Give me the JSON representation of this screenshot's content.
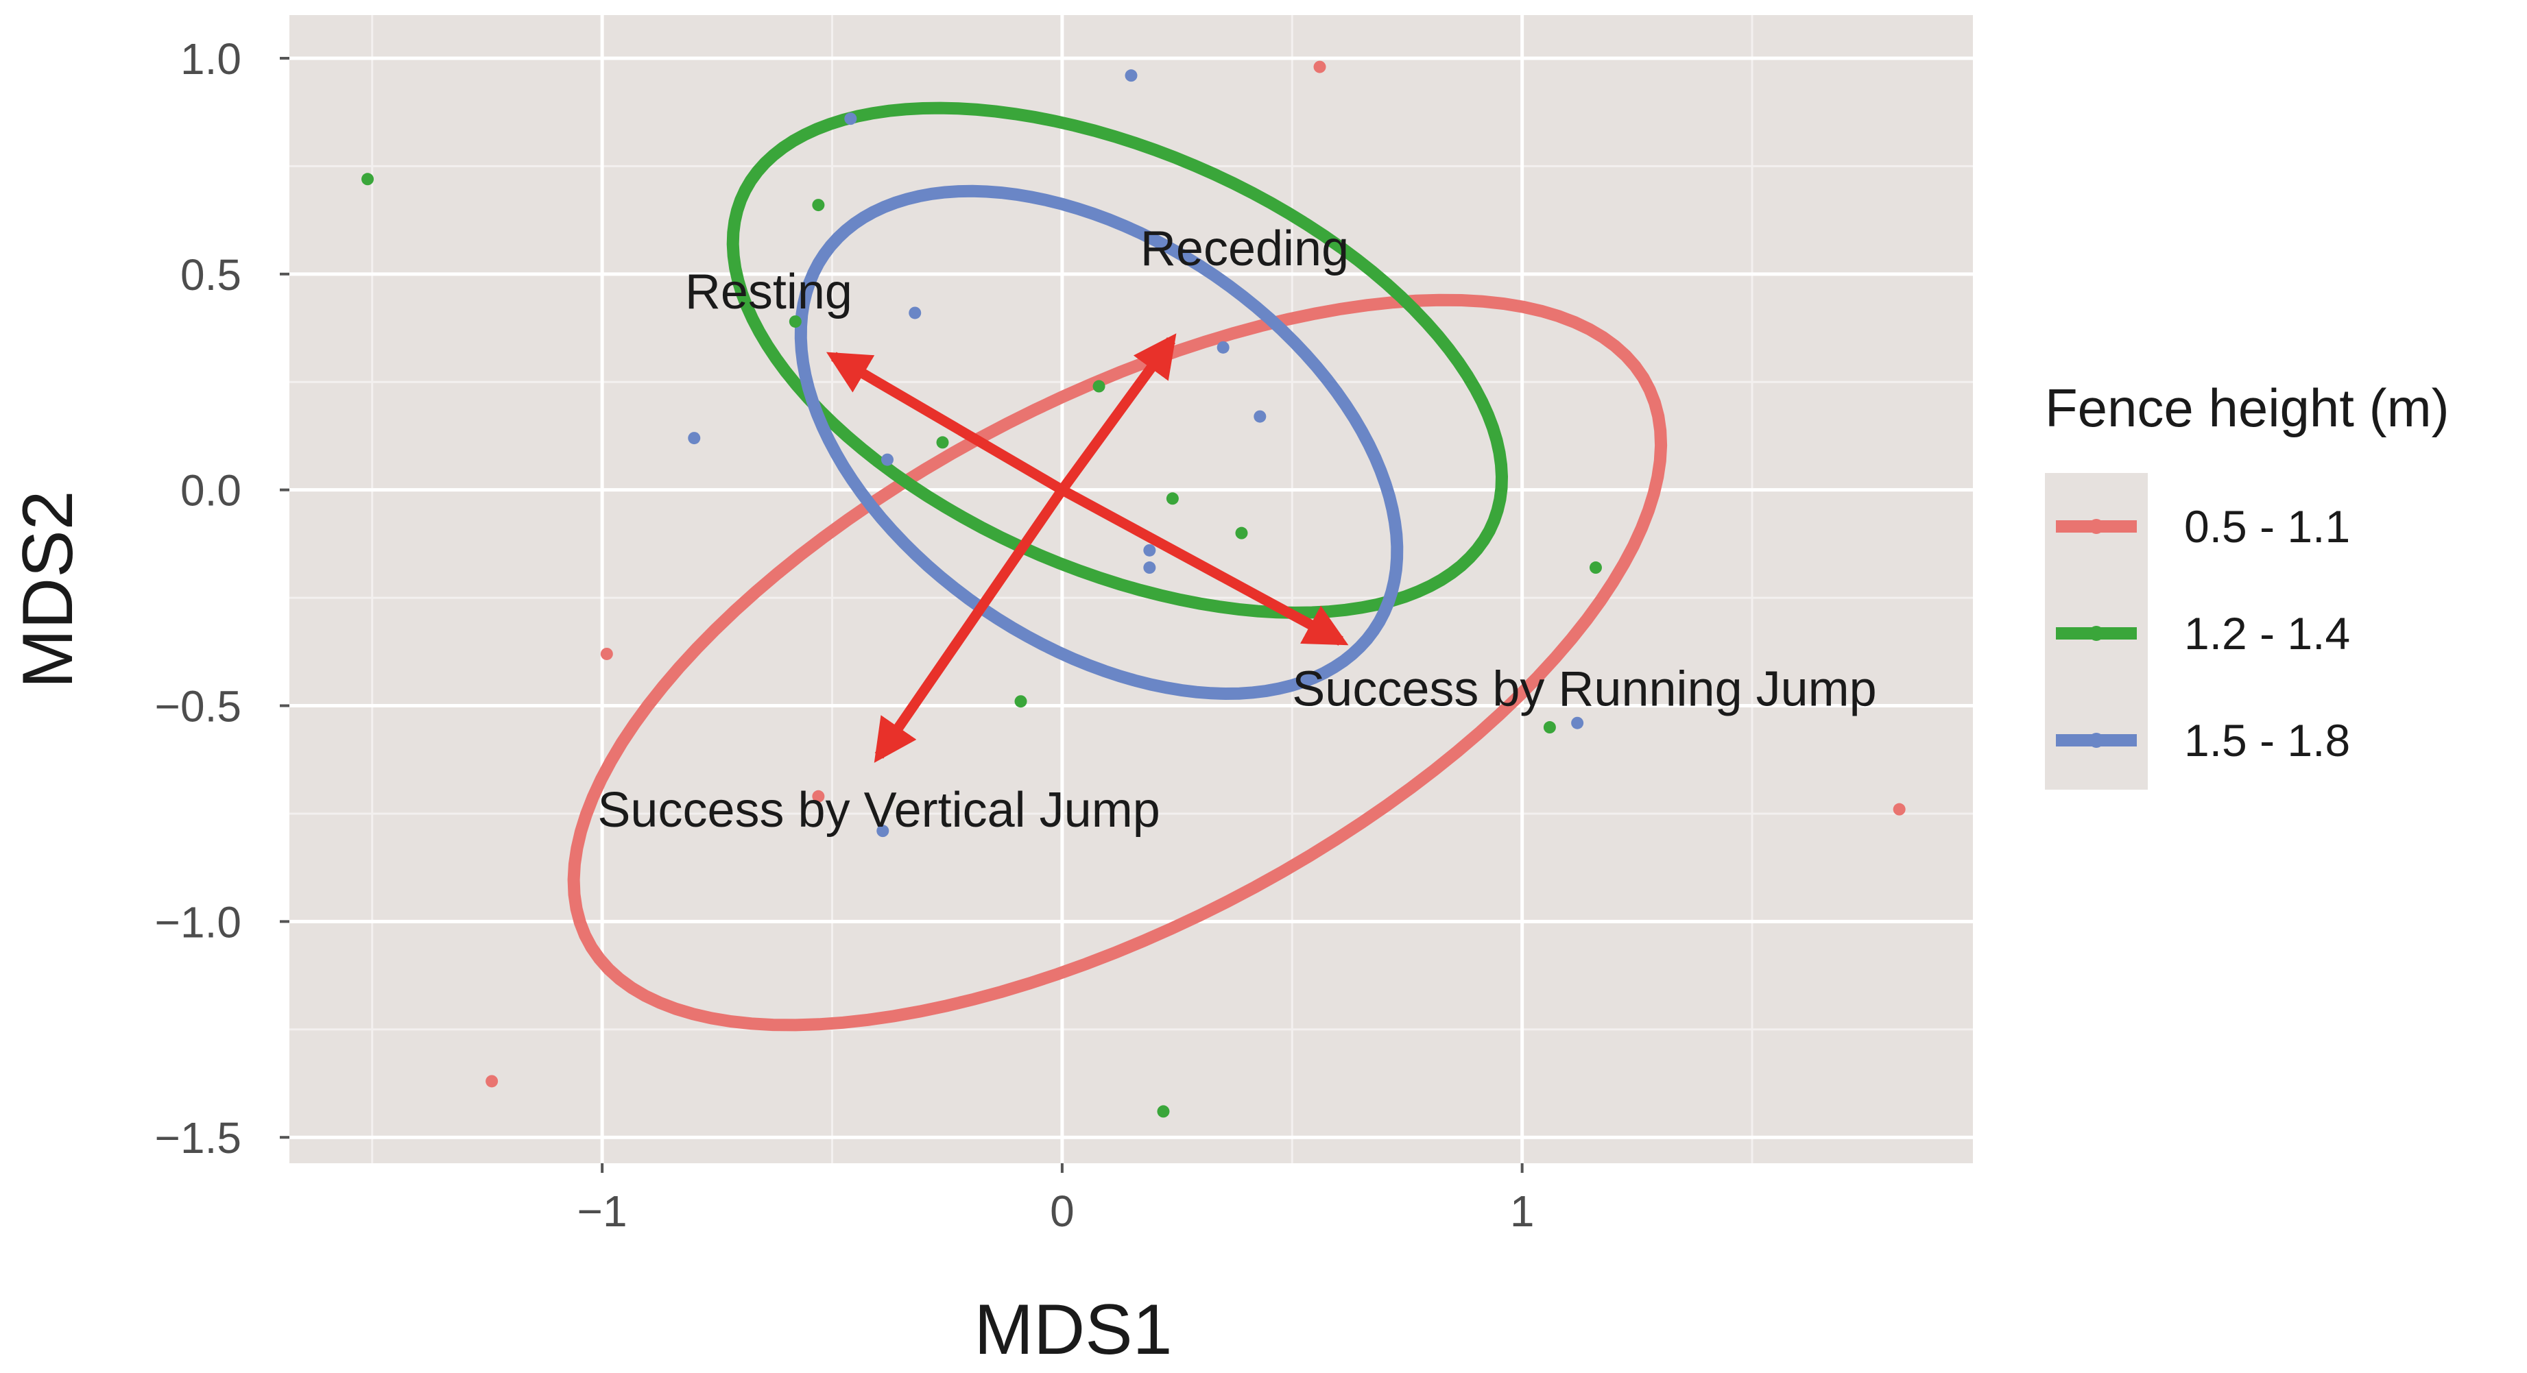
{
  "chart_data": {
    "type": "scatter",
    "xlabel": "MDS1",
    "ylabel": "MDS2",
    "xlim": [
      -1.68,
      1.98
    ],
    "ylim": [
      -1.56,
      1.1
    ],
    "x_ticks": [
      -1,
      0,
      1
    ],
    "x_tick_labels": [
      "−1",
      "0",
      "1"
    ],
    "y_ticks": [
      1.0,
      0.5,
      0.0,
      -0.5,
      -1.0,
      -1.5
    ],
    "y_tick_labels": [
      "1.0",
      "0.5",
      "0.0",
      "−0.5",
      "−1.0",
      "−1.5"
    ],
    "grid": true,
    "panel_background": "#e6e1de",
    "legend": {
      "title": "Fence height (m)",
      "position": "right"
    },
    "series": [
      {
        "name": "0.5 - 1.1",
        "color": "#e97470",
        "points": [
          {
            "x": 0.56,
            "y": 0.98
          },
          {
            "x": -0.99,
            "y": -0.38
          },
          {
            "x": -0.53,
            "y": -0.71
          },
          {
            "x": -1.24,
            "y": -1.37
          },
          {
            "x": 1.82,
            "y": -0.74
          }
        ],
        "ellipse": {
          "cx": 0.12,
          "cy": -0.4,
          "rx": 1.32,
          "ry": 0.6,
          "angle_deg": 30
        }
      },
      {
        "name": "1.2 - 1.4",
        "color": "#3aa63a",
        "points": [
          {
            "x": -1.51,
            "y": 0.72
          },
          {
            "x": -0.53,
            "y": 0.66
          },
          {
            "x": -0.58,
            "y": 0.39
          },
          {
            "x": 0.08,
            "y": 0.24
          },
          {
            "x": -0.26,
            "y": 0.11
          },
          {
            "x": 0.24,
            "y": -0.02
          },
          {
            "x": 0.39,
            "y": -0.1
          },
          {
            "x": 1.16,
            "y": -0.18
          },
          {
            "x": -0.09,
            "y": -0.49
          },
          {
            "x": 1.06,
            "y": -0.55
          },
          {
            "x": 0.22,
            "y": -1.44
          }
        ],
        "ellipse": {
          "cx": 0.12,
          "cy": 0.3,
          "rx": 0.9,
          "ry": 0.48,
          "angle_deg": -26
        }
      },
      {
        "name": "1.5 - 1.8",
        "color": "#6a86c6",
        "points": [
          {
            "x": 0.15,
            "y": 0.96
          },
          {
            "x": -0.46,
            "y": 0.86
          },
          {
            "x": -0.32,
            "y": 0.41
          },
          {
            "x": 0.35,
            "y": 0.33
          },
          {
            "x": 0.43,
            "y": 0.17
          },
          {
            "x": -0.8,
            "y": 0.12
          },
          {
            "x": -0.38,
            "y": 0.07
          },
          {
            "x": 0.19,
            "y": -0.14
          },
          {
            "x": 0.19,
            "y": -0.18
          },
          {
            "x": 1.12,
            "y": -0.54
          },
          {
            "x": -0.39,
            "y": -0.79
          }
        ],
        "ellipse": {
          "cx": 0.08,
          "cy": 0.11,
          "rx": 0.74,
          "ry": 0.46,
          "angle_deg": -38
        }
      }
    ],
    "arrows": {
      "color": "#e8312a",
      "origin": {
        "x": 0,
        "y": 0
      },
      "vectors": [
        {
          "label": "Resting",
          "x": -0.53,
          "y": 0.33,
          "label_x": -0.82,
          "label_y": 0.42
        },
        {
          "label": "Receding",
          "x": 0.26,
          "y": 0.38,
          "label_x": 0.17,
          "label_y": 0.52
        },
        {
          "label": "Success by Running Jump",
          "x": 0.64,
          "y": -0.37,
          "label_x": 0.5,
          "label_y": -0.5
        },
        {
          "label": "Success by Vertical Jump",
          "x": -0.42,
          "y": -0.65,
          "label_x": -1.01,
          "label_y": -0.78
        }
      ]
    }
  }
}
